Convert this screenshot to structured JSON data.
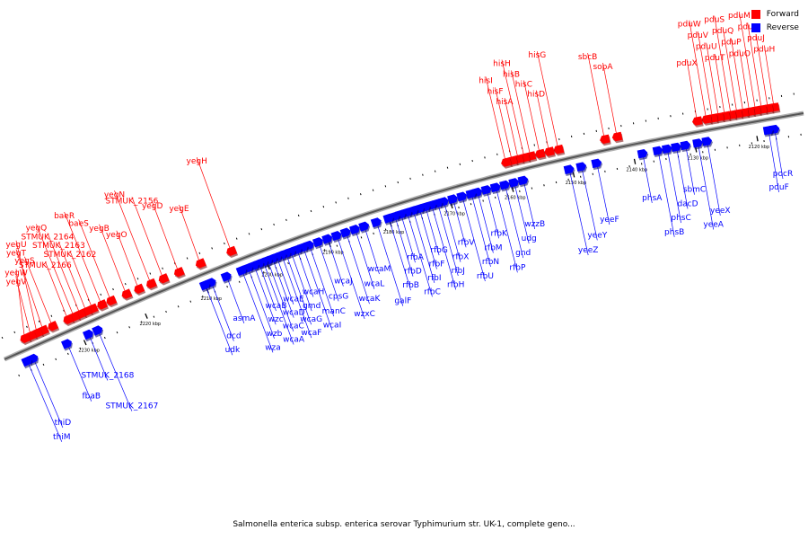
{
  "legend": {
    "forward_label": "Forward",
    "reverse_label": "Reverse",
    "forward_color": "#ff0000",
    "reverse_color": "#0000ff"
  },
  "caption": "Salmonella enterica subsp. enterica serovar Typhimurium str. UK-1, complete geno...",
  "ticks": [
    {
      "label": "2120 kbp",
      "kbp": 2120
    },
    {
      "label": "2130 kbp",
      "kbp": 2130
    },
    {
      "label": "2140 kbp",
      "kbp": 2140
    },
    {
      "label": "2150 kbp",
      "kbp": 2150
    },
    {
      "label": "2160 kbp",
      "kbp": 2160
    },
    {
      "label": "2170 kbp",
      "kbp": 2170
    },
    {
      "label": "2180 kbp",
      "kbp": 2180
    },
    {
      "label": "2190 kbp",
      "kbp": 2190
    },
    {
      "label": "2200 kbp",
      "kbp": 2200
    },
    {
      "label": "2210 kbp",
      "kbp": 2210
    },
    {
      "label": "2220 kbp",
      "kbp": 2220
    },
    {
      "label": "2230 kbp",
      "kbp": 2230
    }
  ],
  "reverse_genes": [
    {
      "name": "pocR",
      "kbp": 2117.0
    },
    {
      "name": "pduF",
      "kbp": 2118.0
    },
    {
      "name": "yeeX",
      "kbp": 2128.0
    },
    {
      "name": "yeeA",
      "kbp": 2129.5
    },
    {
      "name": "sbmC",
      "kbp": 2131.5
    },
    {
      "name": "dacD",
      "kbp": 2133.0
    },
    {
      "name": "phsC",
      "kbp": 2134.5
    },
    {
      "name": "phsB",
      "kbp": 2136.0
    },
    {
      "name": "phsA",
      "kbp": 2138.5
    },
    {
      "name": "yeeF",
      "kbp": 2146.0
    },
    {
      "name": "yeeY",
      "kbp": 2148.5
    },
    {
      "name": "yeeZ",
      "kbp": 2150.5
    },
    {
      "name": "wzzB",
      "kbp": 2158.0
    },
    {
      "name": "udg",
      "kbp": 2159.5
    },
    {
      "name": "gnd",
      "kbp": 2161.0
    },
    {
      "name": "rfbP",
      "kbp": 2162.5
    },
    {
      "name": "rfbK",
      "kbp": 2164.0
    },
    {
      "name": "rfbM",
      "kbp": 2165.5
    },
    {
      "name": "rfbN",
      "kbp": 2166.5
    },
    {
      "name": "rfbU",
      "kbp": 2168.0
    },
    {
      "name": "rfbV",
      "kbp": 2169.5
    },
    {
      "name": "rfbX",
      "kbp": 2171.0
    },
    {
      "name": "rfbJ",
      "kbp": 2172.0
    },
    {
      "name": "rfbH",
      "kbp": 2173.0
    },
    {
      "name": "rfbG",
      "kbp": 2174.0
    },
    {
      "name": "rfbF",
      "kbp": 2175.0
    },
    {
      "name": "rfbI",
      "kbp": 2176.0
    },
    {
      "name": "rfbC",
      "kbp": 2177.0
    },
    {
      "name": "rfbA",
      "kbp": 2178.0
    },
    {
      "name": "rfbD",
      "kbp": 2179.0
    },
    {
      "name": "rfbB",
      "kbp": 2180.0
    },
    {
      "name": "galF",
      "kbp": 2182.0
    },
    {
      "name": "wcaM",
      "kbp": 2184.0
    },
    {
      "name": "wcaL",
      "kbp": 2185.5
    },
    {
      "name": "wcaK",
      "kbp": 2187.0
    },
    {
      "name": "wzxC",
      "kbp": 2188.5
    },
    {
      "name": "wcaJ",
      "kbp": 2190.0
    },
    {
      "name": "cpsG",
      "kbp": 2191.5
    },
    {
      "name": "manC",
      "kbp": 2193.0
    },
    {
      "name": "wcaI",
      "kbp": 2194.0
    },
    {
      "name": "wcaH",
      "kbp": 2195.0
    },
    {
      "name": "gmd",
      "kbp": 2196.0
    },
    {
      "name": "wcaG",
      "kbp": 2196.8
    },
    {
      "name": "wcaF",
      "kbp": 2197.5
    },
    {
      "name": "wcaE",
      "kbp": 2198.3
    },
    {
      "name": "wcaD",
      "kbp": 2199.0
    },
    {
      "name": "wcaC",
      "kbp": 2199.8
    },
    {
      "name": "wcaA",
      "kbp": 2200.5
    },
    {
      "name": "wcaB",
      "kbp": 2201.2
    },
    {
      "name": "wzc",
      "kbp": 2202.0
    },
    {
      "name": "wzb",
      "kbp": 2203.0
    },
    {
      "name": "wza",
      "kbp": 2204.0
    },
    {
      "name": "asmA",
      "kbp": 2206.5
    },
    {
      "name": "dcd",
      "kbp": 2209.0
    },
    {
      "name": "udk",
      "kbp": 2210.0
    },
    {
      "name": "STMUK_2167",
      "kbp": 2227.5
    },
    {
      "name": "STMUK_2168",
      "kbp": 2229.0
    },
    {
      "name": "fbaB",
      "kbp": 2232.5
    },
    {
      "name": "thiD",
      "kbp": 2238.0
    },
    {
      "name": "thiM",
      "kbp": 2239.0
    }
  ],
  "forward_genes": [
    {
      "name": "pduH",
      "kbp": 2116.5
    },
    {
      "name": "pduJ",
      "kbp": 2117.5
    },
    {
      "name": "pduL",
      "kbp": 2118.5
    },
    {
      "name": "pduM",
      "kbp": 2119.5
    },
    {
      "name": "pduO",
      "kbp": 2120.5
    },
    {
      "name": "pduP",
      "kbp": 2121.5
    },
    {
      "name": "pduQ",
      "kbp": 2122.5
    },
    {
      "name": "pduS",
      "kbp": 2123.5
    },
    {
      "name": "pduT",
      "kbp": 2124.5
    },
    {
      "name": "pduU",
      "kbp": 2125.5
    },
    {
      "name": "pduV",
      "kbp": 2126.5
    },
    {
      "name": "pduW",
      "kbp": 2127.5
    },
    {
      "name": "pduX",
      "kbp": 2129.0
    },
    {
      "name": "sopA",
      "kbp": 2142.0
    },
    {
      "name": "sbcB",
      "kbp": 2144.0
    },
    {
      "name": "hisG",
      "kbp": 2151.5
    },
    {
      "name": "hisD",
      "kbp": 2153.0
    },
    {
      "name": "hisC",
      "kbp": 2154.5
    },
    {
      "name": "hisB",
      "kbp": 2156.0
    },
    {
      "name": "hisH",
      "kbp": 2157.0
    },
    {
      "name": "hisA",
      "kbp": 2158.0
    },
    {
      "name": "hisF",
      "kbp": 2159.0
    },
    {
      "name": "hisI",
      "kbp": 2160.0
    },
    {
      "name": "yegH",
      "kbp": 2204.5
    },
    {
      "name": "yegE",
      "kbp": 2209.5
    },
    {
      "name": "yegD",
      "kbp": 2213.0
    },
    {
      "name": "STMUK_2156",
      "kbp": 2215.5
    },
    {
      "name": "yegN",
      "kbp": 2217.5
    },
    {
      "name": "yegO",
      "kbp": 2219.5
    },
    {
      "name": "yegB",
      "kbp": 2221.5
    },
    {
      "name": "baeS",
      "kbp": 2224.0
    },
    {
      "name": "baeR",
      "kbp": 2225.5
    },
    {
      "name": "STMUK_2162",
      "kbp": 2227.0
    },
    {
      "name": "STMUK_2163",
      "kbp": 2228.0
    },
    {
      "name": "STMUK_2164",
      "kbp": 2229.0
    },
    {
      "name": "yegQ",
      "kbp": 2230.0
    },
    {
      "name": "STMUK_2166",
      "kbp": 2231.0
    },
    {
      "name": "yegS",
      "kbp": 2233.5
    },
    {
      "name": "yegT",
      "kbp": 2235.0
    },
    {
      "name": "yegU",
      "kbp": 2236.0
    },
    {
      "name": "yegV",
      "kbp": 2237.0
    },
    {
      "name": "yegW",
      "kbp": 2238.0
    }
  ]
}
